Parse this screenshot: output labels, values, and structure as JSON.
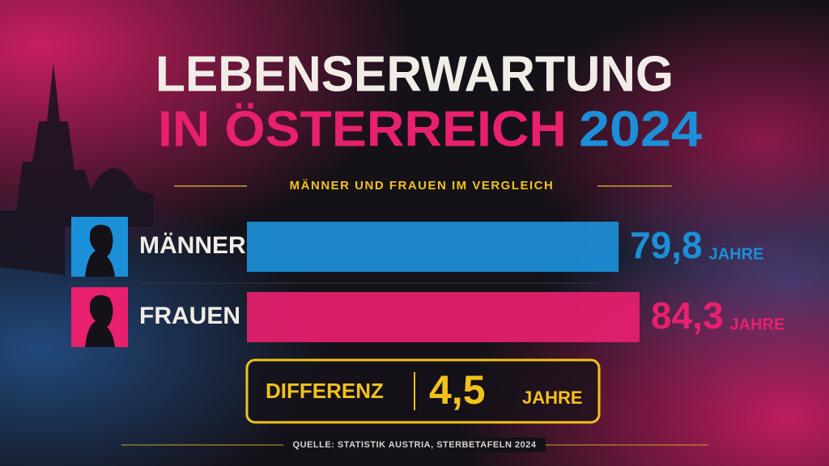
{
  "chart_data": {
    "type": "bar",
    "title": [
      "LEBENSERWARTUNG",
      "IN ÖSTERREICH",
      "2024"
    ],
    "subtitle": "MÄNNER UND FRAUEN IM VERGLEICH",
    "categories": [
      "MÄNNER",
      "FRAUEN"
    ],
    "values": [
      79.8,
      84.3
    ],
    "value_labels": [
      "79,8",
      "84,3"
    ],
    "unit": "JAHRE",
    "colors": [
      "#1c8fd9",
      "#e8206e"
    ],
    "difference": {
      "label": "DIFFERENZ",
      "value": 4.5,
      "value_label": "4,5",
      "color": "#f2c21b"
    },
    "source": "QUELLE: STATISTIK AUSTRIA, STERBETAFELN 2024"
  }
}
